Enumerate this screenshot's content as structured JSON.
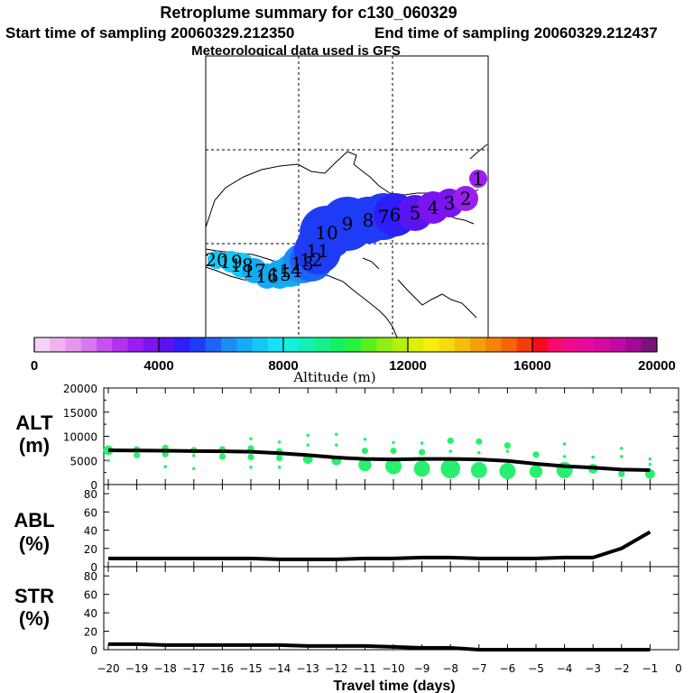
{
  "header": {
    "title": "Retroplume summary for c130_060329",
    "start_label": "Start time of sampling 20060329.212350",
    "end_label": "End time of sampling 20060329.212437",
    "met_label": "Meteorological data used is GFS"
  },
  "map": {
    "day_labels": [
      {
        "text": "1"
      },
      {
        "text": "2"
      },
      {
        "text": "3"
      },
      {
        "text": "4"
      },
      {
        "text": "5"
      },
      {
        "text": "6"
      },
      {
        "text": "7"
      },
      {
        "text": "8"
      },
      {
        "text": "9"
      },
      {
        "text": "10"
      },
      {
        "text": "11"
      },
      {
        "text": "12"
      },
      {
        "text": "13"
      },
      {
        "text": "14"
      },
      {
        "text": "15"
      },
      {
        "text": "16"
      },
      {
        "text": "17"
      },
      {
        "text": "18"
      },
      {
        "text": "19"
      },
      {
        "text": "20"
      }
    ]
  },
  "colorbar": {
    "label": "Altitude (m)",
    "min": 0,
    "max": 20000,
    "ticks": [
      "0",
      "4000",
      "8000",
      "12000",
      "16000",
      "20000"
    ],
    "colors": [
      "#f5d2f5",
      "#efb4ef",
      "#e696ef",
      "#d878ef",
      "#c850f0",
      "#b432ee",
      "#9a1ef0",
      "#7a14f0",
      "#5a14f0",
      "#2d1efa",
      "#1e3cf5",
      "#1e64f5",
      "#1e8cf5",
      "#14aaf5",
      "#14c8f5",
      "#14e1f5",
      "#14f0dc",
      "#14f0b4",
      "#14f08c",
      "#14f064",
      "#28f03c",
      "#5af01e",
      "#8cf014",
      "#b4f00a",
      "#dcf00a",
      "#f5f00a",
      "#f5dc0a",
      "#f5be0a",
      "#f5a00a",
      "#f5820a",
      "#f5640a",
      "#f53c0a",
      "#f50a1e",
      "#f50a6e",
      "#f00a8c",
      "#e60a9c",
      "#d20aa0",
      "#be0aa0",
      "#a00a96",
      "#781478"
    ]
  },
  "chart_data": [
    {
      "type": "line",
      "panel": "ALT",
      "ylabel": "ALT (m)",
      "ylim": [
        0,
        20000
      ],
      "yticks": [
        "0",
        "5000",
        "10000",
        "15000",
        "20000"
      ],
      "x": [
        -20,
        -19,
        -18,
        -17,
        -16,
        -15,
        -14,
        -13,
        -12,
        -11,
        -10,
        -9,
        -8,
        -7,
        -6,
        -5,
        -4,
        -3,
        -2,
        -1
      ],
      "series": [
        {
          "name": "mean altitude",
          "values": [
            7100,
            7050,
            7000,
            6950,
            6900,
            6800,
            6500,
            6100,
            5600,
            5300,
            5200,
            5300,
            5300,
            5200,
            4900,
            4300,
            3800,
            3500,
            3100,
            3000
          ]
        }
      ],
      "clusters": [
        {
          "x": -20,
          "points": [
            [
              7100,
              3
            ],
            [
              5000,
              1
            ]
          ]
        },
        {
          "x": -19,
          "points": [
            [
              7300,
              2
            ],
            [
              6100,
              2
            ]
          ]
        },
        {
          "x": -18,
          "points": [
            [
              7600,
              2
            ],
            [
              6300,
              2
            ],
            [
              3700,
              1
            ]
          ]
        },
        {
          "x": -17,
          "points": [
            [
              7100,
              2
            ],
            [
              6000,
              1
            ],
            [
              3300,
              1
            ]
          ]
        },
        {
          "x": -16,
          "points": [
            [
              7300,
              2
            ],
            [
              5800,
              2
            ]
          ]
        },
        {
          "x": -15,
          "points": [
            [
              9500,
              1
            ],
            [
              7500,
              2
            ],
            [
              5700,
              2
            ],
            [
              3600,
              1
            ]
          ]
        },
        {
          "x": -14,
          "points": [
            [
              8800,
              1
            ],
            [
              6900,
              2
            ],
            [
              5500,
              2
            ],
            [
              3600,
              1
            ]
          ]
        },
        {
          "x": -13,
          "points": [
            [
              10200,
              1
            ],
            [
              8200,
              1
            ],
            [
              5300,
              3
            ]
          ]
        },
        {
          "x": -12,
          "points": [
            [
              10400,
              1
            ],
            [
              8200,
              1
            ],
            [
              5000,
              3
            ]
          ]
        },
        {
          "x": -11,
          "points": [
            [
              9400,
              1
            ],
            [
              7000,
              2
            ],
            [
              4100,
              4
            ]
          ]
        },
        {
          "x": -10,
          "points": [
            [
              8700,
              1
            ],
            [
              7000,
              2
            ],
            [
              3800,
              5
            ]
          ]
        },
        {
          "x": -9,
          "points": [
            [
              8600,
              1
            ],
            [
              6700,
              2
            ],
            [
              3300,
              5
            ]
          ]
        },
        {
          "x": -8,
          "points": [
            [
              9100,
              2
            ],
            [
              6900,
              1
            ],
            [
              3300,
              6
            ]
          ]
        },
        {
          "x": -7,
          "points": [
            [
              8900,
              2
            ],
            [
              6600,
              1
            ],
            [
              3000,
              5
            ]
          ]
        },
        {
          "x": -6,
          "points": [
            [
              8100,
              2
            ],
            [
              6900,
              1
            ],
            [
              2800,
              5
            ]
          ]
        },
        {
          "x": -5,
          "points": [
            [
              6200,
              2
            ],
            [
              4100,
              1
            ],
            [
              2700,
              4
            ]
          ]
        },
        {
          "x": -4,
          "points": [
            [
              8400,
              1
            ],
            [
              5800,
              1
            ],
            [
              3000,
              5
            ]
          ]
        },
        {
          "x": -3,
          "points": [
            [
              5700,
              1
            ],
            [
              3300,
              3
            ]
          ]
        },
        {
          "x": -2,
          "points": [
            [
              7500,
              1
            ],
            [
              5800,
              1
            ],
            [
              2200,
              2
            ]
          ]
        },
        {
          "x": -1,
          "points": [
            [
              5300,
              1
            ],
            [
              4200,
              1
            ],
            [
              2200,
              3
            ]
          ]
        }
      ]
    },
    {
      "type": "line",
      "panel": "ABL",
      "ylabel": "ABL (%)",
      "ylim": [
        0,
        90
      ],
      "yticks": [
        "0",
        "20",
        "40",
        "60",
        "80"
      ],
      "x": [
        -20,
        -19,
        -18,
        -17,
        -16,
        -15,
        -14,
        -13,
        -12,
        -11,
        -10,
        -9,
        -8,
        -7,
        -6,
        -5,
        -4,
        -3,
        -2,
        -1
      ],
      "series": [
        {
          "name": "ABL fraction",
          "values": [
            9,
            9,
            9,
            9,
            9,
            9,
            8,
            8,
            8,
            9,
            9,
            10,
            10,
            9,
            9,
            9,
            10,
            10,
            20,
            38
          ]
        }
      ]
    },
    {
      "type": "line",
      "panel": "STR",
      "ylabel": "STR (%)",
      "ylim": [
        0,
        90
      ],
      "yticks": [
        "0",
        "20",
        "40",
        "60",
        "80"
      ],
      "x": [
        -20,
        -19,
        -18,
        -17,
        -16,
        -15,
        -14,
        -13,
        -12,
        -11,
        -10,
        -9,
        -8,
        -7,
        -6,
        -5,
        -4,
        -3,
        -2,
        -1
      ],
      "series": [
        {
          "name": "STR fraction",
          "values": [
            6,
            6,
            5,
            5,
            5,
            5,
            5,
            4,
            4,
            4,
            3,
            2,
            2,
            0,
            0,
            0,
            0,
            0,
            0,
            0
          ]
        }
      ],
      "xlabel": "Travel time (days)",
      "xticks": [
        "-20",
        "-19",
        "-18",
        "-17",
        "-16",
        "-15",
        "-14",
        "-13",
        "-12",
        "-11",
        "-10",
        "-9",
        "-8",
        "-7",
        "-6",
        "-5",
        "-4",
        "-3",
        "-2",
        "-1",
        "0"
      ]
    }
  ]
}
